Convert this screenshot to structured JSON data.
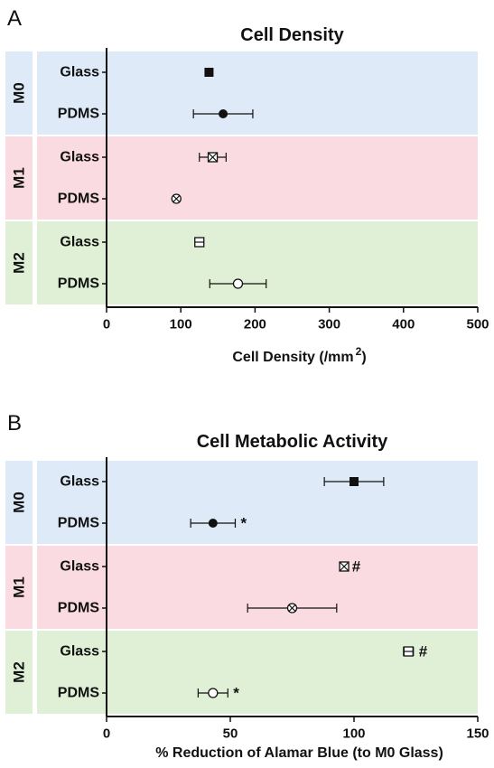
{
  "chart_data": [
    {
      "panel": "A",
      "type": "scatter",
      "title": "Cell Density",
      "xlabel": "Cell Density (/mm",
      "xlabel_sup": "2",
      "xlabel_suffix": ")",
      "xlim": [
        0,
        500
      ],
      "xticks": [
        0,
        100,
        200,
        300,
        400,
        500
      ],
      "groups": [
        {
          "name": "M0",
          "color": "#deeaf7",
          "rows": [
            {
              "label": "Glass",
              "value": 138,
              "error": 3,
              "marker": "filled-square",
              "sig": ""
            },
            {
              "label": "PDMS",
              "value": 157,
              "error": 40,
              "marker": "filled-circle",
              "sig": ""
            }
          ]
        },
        {
          "name": "M1",
          "color": "#fadbe1",
          "rows": [
            {
              "label": "Glass",
              "value": 143,
              "error": 18,
              "marker": "x-square",
              "sig": ""
            },
            {
              "label": "PDMS",
              "value": 94,
              "error": 3,
              "marker": "x-circle",
              "sig": ""
            }
          ]
        },
        {
          "name": "M2",
          "color": "#e0f0d6",
          "rows": [
            {
              "label": "Glass",
              "value": 125,
              "error": 4,
              "marker": "minus-square",
              "sig": ""
            },
            {
              "label": "PDMS",
              "value": 177,
              "error": 38,
              "marker": "open-circle",
              "sig": ""
            }
          ]
        }
      ]
    },
    {
      "panel": "B",
      "type": "scatter",
      "title": "Cell Metabolic Activity",
      "xlabel": "% Reduction of Alamar Blue (to M0 Glass)",
      "xlabel_sup": "",
      "xlabel_suffix": "",
      "xlim": [
        0,
        150
      ],
      "xticks": [
        0,
        50,
        100,
        150
      ],
      "groups": [
        {
          "name": "M0",
          "color": "#deeaf7",
          "rows": [
            {
              "label": "Glass",
              "value": 100,
              "error": 12,
              "marker": "filled-square",
              "sig": ""
            },
            {
              "label": "PDMS",
              "value": 43,
              "error": 9,
              "marker": "filled-circle",
              "sig": "*"
            }
          ]
        },
        {
          "name": "M1",
          "color": "#fadbe1",
          "rows": [
            {
              "label": "Glass",
              "value": 96,
              "error": 1,
              "marker": "x-square",
              "sig": "#"
            },
            {
              "label": "PDMS",
              "value": 75,
              "error": 18,
              "marker": "x-circle",
              "sig": ""
            }
          ]
        },
        {
          "name": "M2",
          "color": "#e0f0d6",
          "rows": [
            {
              "label": "Glass",
              "value": 122,
              "error": 2,
              "marker": "minus-square",
              "sig": "#"
            },
            {
              "label": "PDMS",
              "value": 43,
              "error": 6,
              "marker": "open-circle",
              "sig": "*"
            }
          ]
        }
      ]
    }
  ]
}
